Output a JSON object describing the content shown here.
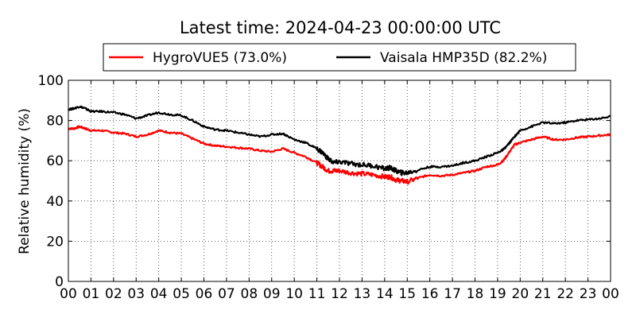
{
  "chart_data": {
    "type": "line",
    "title": "Latest time: 2024-04-23 00:00:00 UTC",
    "xlabel": "",
    "ylabel": "Relative humidity (%)",
    "xlim": [
      0,
      24
    ],
    "ylim": [
      0,
      100
    ],
    "y_ticks": [
      0,
      20,
      40,
      60,
      80,
      100
    ],
    "x_tick_labels": [
      "00",
      "01",
      "02",
      "03",
      "04",
      "05",
      "06",
      "07",
      "08",
      "09",
      "10",
      "11",
      "12",
      "13",
      "14",
      "15",
      "16",
      "17",
      "18",
      "19",
      "20",
      "21",
      "22",
      "23",
      "00"
    ],
    "grid": true,
    "legend_position": "top-center",
    "series": [
      {
        "name": "HygroVUE5 (73.0%)",
        "color": "#ff0000",
        "x": [
          0,
          0.25,
          0.5,
          0.75,
          1,
          1.5,
          2,
          2.5,
          3,
          3.5,
          4,
          4.5,
          5,
          5.5,
          6,
          6.5,
          7,
          7.5,
          8,
          8.5,
          9,
          9.5,
          10,
          10.5,
          11,
          11.25,
          11.5,
          11.75,
          12,
          12.5,
          13,
          13.5,
          14,
          14.25,
          14.5,
          14.75,
          15,
          15.5,
          16,
          16.5,
          17,
          17.5,
          18,
          18.5,
          19,
          19.25,
          19.5,
          19.75,
          20,
          20.5,
          21,
          21.5,
          22,
          22.5,
          23,
          23.5,
          24
        ],
        "values": [
          76,
          76,
          77,
          76,
          75,
          75,
          74,
          73.5,
          72,
          73,
          75,
          74,
          73.5,
          71,
          68.5,
          67.5,
          67,
          66.5,
          66,
          65,
          64.5,
          66,
          64,
          62,
          59,
          57,
          55,
          55,
          55,
          54,
          53.5,
          53,
          52,
          52,
          50.5,
          50,
          49.5,
          51.5,
          53,
          52.5,
          53,
          54,
          55,
          57,
          58,
          60,
          64,
          68,
          69,
          70.5,
          72,
          70.5,
          70.5,
          71.5,
          72,
          72.5,
          73
        ]
      },
      {
        "name": "Vaisala HMP35D (82.2%)",
        "color": "#000000",
        "x": [
          0,
          0.25,
          0.5,
          0.75,
          1,
          1.5,
          2,
          2.5,
          3,
          3.5,
          4,
          4.5,
          5,
          5.5,
          6,
          6.5,
          7,
          7.5,
          8,
          8.5,
          9,
          9.5,
          10,
          10.5,
          11,
          11.25,
          11.5,
          11.75,
          12,
          12.5,
          13,
          13.5,
          14,
          14.25,
          14.5,
          14.75,
          15,
          15.5,
          16,
          16.5,
          17,
          17.5,
          18,
          18.5,
          19,
          19.25,
          19.5,
          19.75,
          20,
          20.5,
          21,
          21.5,
          22,
          22.5,
          23,
          23.5,
          24
        ],
        "values": [
          85.5,
          86,
          87,
          86,
          84.5,
          84.5,
          84,
          83,
          81,
          82.5,
          84,
          83,
          82.5,
          80,
          77,
          75.5,
          75,
          74,
          73,
          72,
          73,
          73.5,
          70.5,
          69,
          66,
          64,
          61,
          59,
          59.5,
          58.5,
          58,
          57.5,
          56,
          56.5,
          55,
          54,
          54,
          55.5,
          57,
          57,
          57.5,
          59,
          60,
          62,
          64,
          65.5,
          68.5,
          72,
          75,
          77,
          79,
          78.5,
          79,
          80,
          80.5,
          81,
          82
        ]
      }
    ]
  }
}
